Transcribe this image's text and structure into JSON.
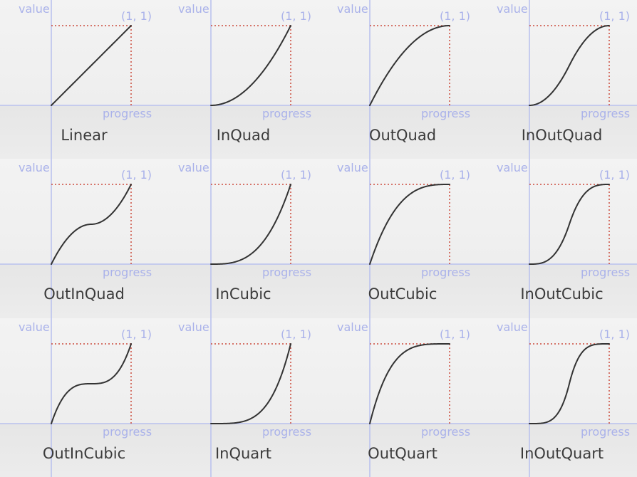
{
  "labels": {
    "value_axis": "value",
    "progress_axis": "progress",
    "end_point": "(1, 1)"
  },
  "colors": {
    "axis": "#b8c0ee",
    "guide": "#cc4b3c",
    "curve": "#333333",
    "axis_text": "#aab2ea"
  },
  "curves": [
    {
      "name": "Linear",
      "easing": "linear"
    },
    {
      "name": "InQuad",
      "easing": "inQuad"
    },
    {
      "name": "OutQuad",
      "easing": "outQuad"
    },
    {
      "name": "InOutQuad",
      "easing": "inOutQuad"
    },
    {
      "name": "OutInQuad",
      "easing": "outInQuad"
    },
    {
      "name": "InCubic",
      "easing": "inCubic"
    },
    {
      "name": "OutCubic",
      "easing": "outCubic"
    },
    {
      "name": "InOutCubic",
      "easing": "inOutCubic"
    },
    {
      "name": "OutInCubic",
      "easing": "outInCubic"
    },
    {
      "name": "InQuart",
      "easing": "inQuart"
    },
    {
      "name": "OutQuart",
      "easing": "outQuart"
    },
    {
      "name": "InOutQuart",
      "easing": "inOutQuart"
    }
  ]
}
